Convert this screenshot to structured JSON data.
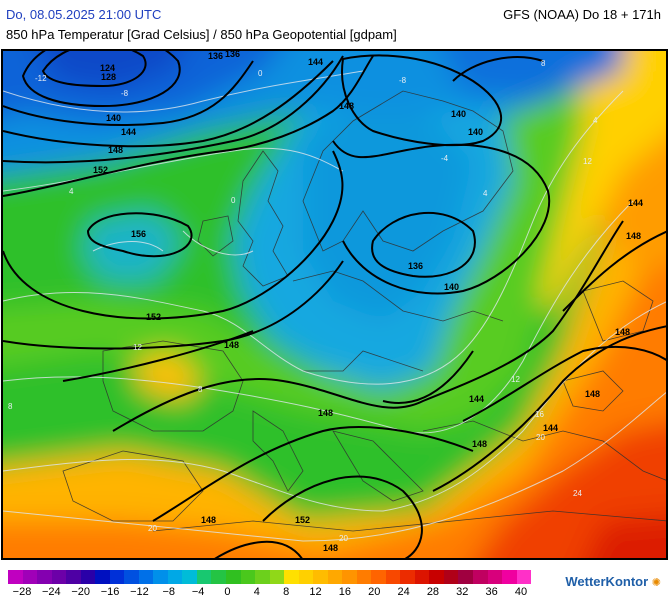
{
  "header": {
    "date_label": "Do, 08.05.2025 21:00 UTC",
    "model_label": "GFS (NOAA) Do 18 + 171h",
    "subtitle": "850 hPa Temperatur [Grad Celsius] / 850 hPa Geopotential [gdpam]"
  },
  "legend": {
    "ticks": [
      "−28",
      "−24",
      "−20",
      "−16",
      "−12",
      "−8",
      "−4",
      "0",
      "4",
      "8",
      "12",
      "16",
      "20",
      "24",
      "28",
      "32",
      "36",
      "40"
    ],
    "colors": [
      "#c000c0",
      "#a000b8",
      "#8400b0",
      "#6c00a8",
      "#4e00a4",
      "#2a00a8",
      "#0010c0",
      "#0030d8",
      "#0050e0",
      "#0070e8",
      "#0090ea",
      "#00a8e6",
      "#00bcd8",
      "#18c870",
      "#24c444",
      "#30c020",
      "#4ac81c",
      "#6cd01c",
      "#90d818",
      "#ffe000",
      "#ffd000",
      "#ffbc00",
      "#ffa800",
      "#ff9400",
      "#ff7c00",
      "#ff6400",
      "#f84800",
      "#ec2c00",
      "#dc1400",
      "#c80000",
      "#b00018",
      "#a00040",
      "#c00060",
      "#d8007c",
      "#f000a0",
      "#ff30c8"
    ]
  },
  "logo": {
    "text": "WetterKontor",
    "spark_icon": "star-burst-icon"
  },
  "map": {
    "geopotential_labels": [
      "124",
      "128",
      "136",
      "140",
      "144",
      "148",
      "152",
      "156",
      "136",
      "140",
      "144",
      "148",
      "152",
      "148",
      "148",
      "144",
      "136",
      "140",
      "148",
      "148",
      "148",
      "144",
      "148",
      "152",
      "148",
      "140",
      "144",
      "148"
    ],
    "isotherm_labels": [
      "-12",
      "-8",
      "0",
      "4",
      "-8",
      "-4",
      "0",
      "4",
      "4",
      "8",
      "8",
      "12",
      "12",
      "16",
      "20",
      "20",
      "24",
      "8",
      "12",
      "20"
    ]
  }
}
